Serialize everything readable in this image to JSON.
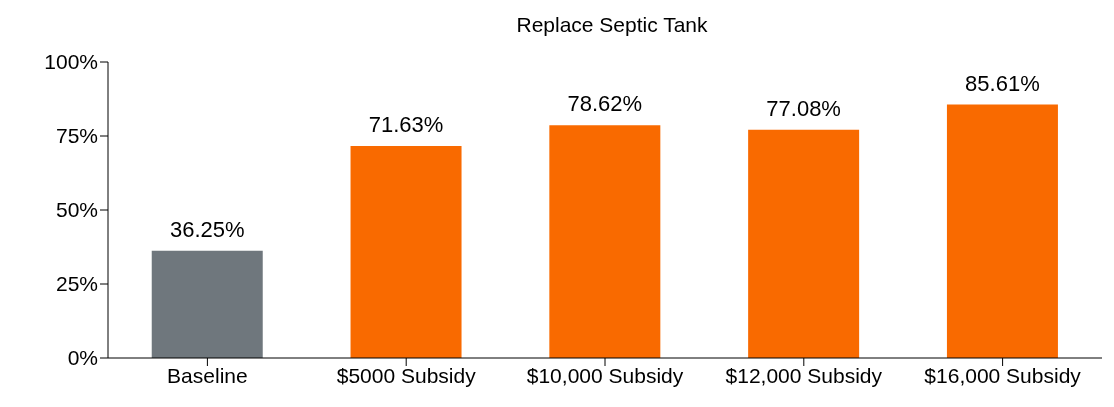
{
  "chart_data": {
    "type": "bar",
    "title": "Replace Septic Tank",
    "categories": [
      "Baseline",
      "$5000 Subsidy",
      "$10,000 Subsidy",
      "$12,000 Subsidy",
      "$16,000 Subsidy"
    ],
    "values": [
      36.25,
      71.63,
      78.62,
      77.08,
      85.61
    ],
    "colors": [
      "#6f777d",
      "#f96a00",
      "#f96a00",
      "#f96a00",
      "#f96a00"
    ],
    "value_labels": [
      "36.25%",
      "71.63%",
      "78.62%",
      "77.08%",
      "85.61%"
    ],
    "ylim": [
      0,
      100
    ],
    "yticks": [
      {
        "value": 0,
        "label": "0%"
      },
      {
        "value": 25,
        "label": "25%"
      },
      {
        "value": 50,
        "label": "50%"
      },
      {
        "value": 75,
        "label": "75%"
      },
      {
        "value": 100,
        "label": "100%"
      }
    ]
  }
}
